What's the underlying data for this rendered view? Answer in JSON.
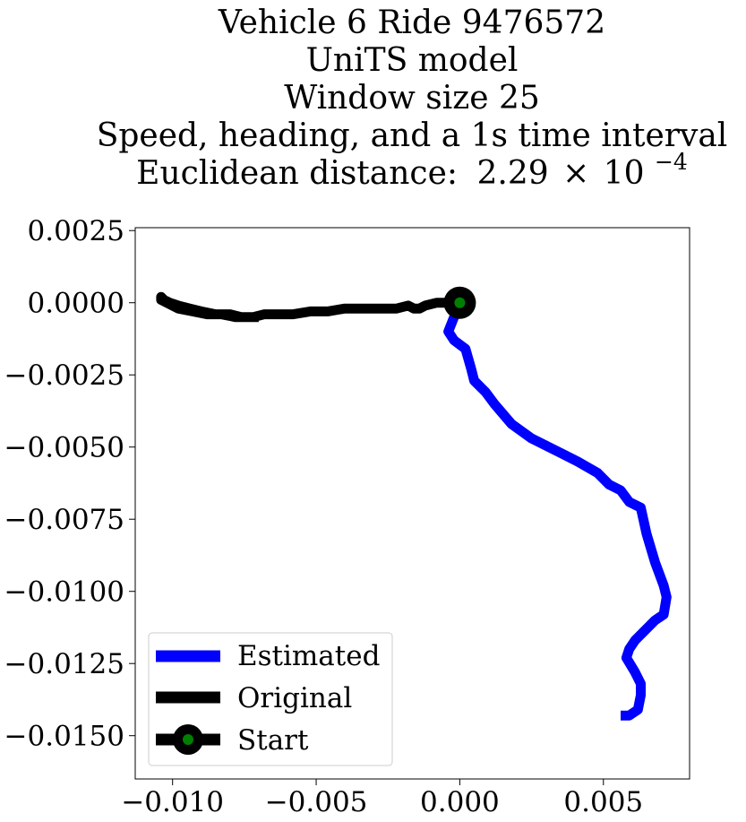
{
  "chart_data": {
    "type": "line",
    "title": [
      "Vehicle 6 Ride 9476572",
      "UniTS model",
      "Window size 25",
      "Speed, heading, and a 1s time interval"
    ],
    "title_metric": {
      "label": "Euclidean distance:",
      "mantissa": "2.29",
      "times": "×",
      "base": "10",
      "exponent": "−4"
    },
    "xlim": [
      -0.0113,
      0.008
    ],
    "ylim": [
      -0.0165,
      0.0026
    ],
    "xticks": [
      -0.01,
      -0.005,
      0.0,
      0.005
    ],
    "xtick_labels": [
      "−0.010",
      "−0.005",
      "0.000",
      "0.005"
    ],
    "yticks": [
      0.0025,
      0.0,
      -0.0025,
      -0.005,
      -0.0075,
      -0.01,
      -0.0125,
      -0.015
    ],
    "ytick_labels": [
      "0.0025",
      "0.0000",
      "−0.0025",
      "−0.0050",
      "−0.0075",
      "−0.0100",
      "−0.0125",
      "−0.0150"
    ],
    "grid": false,
    "legend_position": "lower-left",
    "series": [
      {
        "name": "Estimated",
        "color": "#0000ff",
        "x": [
          0.0,
          -0.0004,
          -0.0002,
          0.0002,
          0.0004,
          0.0005,
          0.0009,
          0.0012,
          0.0018,
          0.0025,
          0.0033,
          0.0041,
          0.0048,
          0.0052,
          0.0056,
          0.0059,
          0.0063,
          0.0065,
          0.0068,
          0.0071,
          0.0072,
          0.0071,
          0.0068,
          0.0064,
          0.0061,
          0.0059,
          0.0058,
          0.0061,
          0.0063,
          0.0063,
          0.0062,
          0.0059,
          0.0056
        ],
        "y": [
          0.0,
          -0.001,
          -0.0013,
          -0.0016,
          -0.0023,
          -0.0027,
          -0.0031,
          -0.0035,
          -0.0042,
          -0.0047,
          -0.0051,
          -0.0055,
          -0.0059,
          -0.0063,
          -0.0065,
          -0.0069,
          -0.0071,
          -0.008,
          -0.009,
          -0.0098,
          -0.0102,
          -0.0108,
          -0.011,
          -0.0114,
          -0.0117,
          -0.012,
          -0.0123,
          -0.0128,
          -0.0132,
          -0.0136,
          -0.0141,
          -0.0143,
          -0.0143
        ]
      },
      {
        "name": "Original",
        "color": "#000000",
        "x": [
          0.0,
          -0.0008,
          -0.0012,
          -0.0014,
          -0.0016,
          -0.0018,
          -0.0022,
          -0.0026,
          -0.003,
          -0.0035,
          -0.004,
          -0.0046,
          -0.0052,
          -0.0058,
          -0.0063,
          -0.0068,
          -0.0072,
          -0.0076,
          -0.008,
          -0.0085,
          -0.009,
          -0.0094,
          -0.0098,
          -0.0101,
          -0.0103,
          -0.0104,
          -0.0104,
          -0.0102,
          -0.0098,
          -0.0093,
          -0.0088,
          -0.0083,
          -0.0078,
          -0.0074,
          -0.007
        ],
        "y": [
          0.0,
          0.0,
          -0.0001,
          -0.0002,
          -0.0002,
          -0.0001,
          -0.0002,
          -0.0002,
          -0.0002,
          -0.0002,
          -0.0002,
          -0.0003,
          -0.0003,
          -0.0004,
          -0.0004,
          -0.0004,
          -0.0005,
          -0.0005,
          -0.0004,
          -0.0004,
          -0.0003,
          -0.0002,
          -0.0001,
          0.0,
          0.0001,
          0.0002,
          0.0001,
          0.0,
          -0.0002,
          -0.0003,
          -0.0004,
          -0.0004,
          -0.0005,
          -0.0005,
          -0.0005
        ]
      }
    ],
    "start": {
      "name": "Start",
      "x": 0.0,
      "y": 0.0,
      "outer_color": "#000000",
      "inner_color": "#008000"
    }
  }
}
